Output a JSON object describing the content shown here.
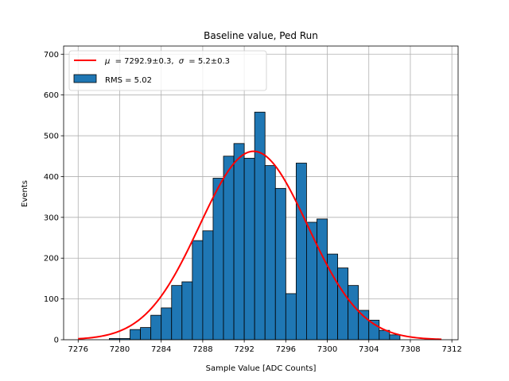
{
  "chart_data": {
    "type": "bar",
    "title": "Baseline value, Ped Run",
    "xlabel": "Sample Value [ADC Counts]",
    "ylabel": "Events",
    "xlim": [
      7274.6,
      7312.6
    ],
    "ylim": [
      0,
      720
    ],
    "x_ticks": [
      7276,
      7280,
      7284,
      7288,
      7292,
      7296,
      7300,
      7304,
      7308,
      7312
    ],
    "y_ticks": [
      0,
      100,
      200,
      300,
      400,
      500,
      600,
      700
    ],
    "grid": true,
    "legend_position": "upper-left",
    "histogram": {
      "name": "RMS = 5.02",
      "color": "#1f77b4",
      "bin_edges": [
        7279,
        7280,
        7281,
        7282,
        7283,
        7284,
        7285,
        7286,
        7287,
        7288,
        7289,
        7290,
        7291,
        7292,
        7293,
        7294,
        7295,
        7296,
        7297,
        7298,
        7299,
        7300,
        7301,
        7302,
        7303,
        7304,
        7305,
        7306,
        7307
      ],
      "counts": [
        3,
        3,
        25,
        30,
        60,
        78,
        133,
        142,
        243,
        267,
        396,
        450,
        481,
        445,
        558,
        427,
        371,
        113,
        433,
        288,
        296,
        210,
        176,
        133,
        72,
        48,
        23,
        12
      ]
    },
    "fit": {
      "name_plain": "μ = 7292.9±0.3, σ = 5.2±0.3",
      "mu_label": "μ",
      "mu_value": "= 7292.9±0.3,",
      "sigma_label": "σ",
      "sigma_value": "= 5.2±0.3",
      "color": "#ff0000",
      "mu": 7292.9,
      "sigma": 5.2,
      "amplitude": 462,
      "x_range": [
        7276,
        7311
      ]
    }
  }
}
